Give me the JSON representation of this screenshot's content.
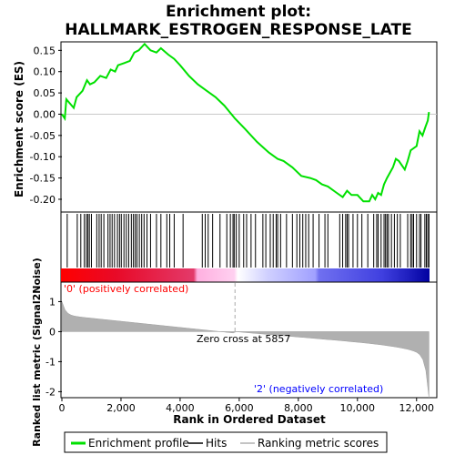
{
  "chart_data": {
    "type": "line",
    "title_line1": "Enrichment plot:",
    "title_line2": "HALLMARK_ESTROGEN_RESPONSE_LATE",
    "xlabel": "Rank in Ordered Dataset",
    "ylabel_top": "Enrichment score (ES)",
    "ylabel_bottom": "Ranked list metric (Signal2Noise)",
    "xlim": [
      0,
      12500
    ],
    "ylim_top": [
      -0.23,
      0.17
    ],
    "ylim_bottom": [
      -2.2,
      1.65
    ],
    "x_ticks": [
      0,
      2000,
      4000,
      6000,
      8000,
      10000,
      12000
    ],
    "x_tick_labels": [
      "0",
      "2,000",
      "4,000",
      "6,000",
      "8,000",
      "10,000",
      "12,000"
    ],
    "y_ticks_top": [
      0.15,
      0.1,
      0.05,
      0.0,
      -0.05,
      -0.1,
      -0.15,
      -0.2
    ],
    "y_tick_labels_top": [
      "0.15",
      "0.10",
      "0.05",
      "0.00",
      "-0.05",
      "-0.10",
      "-0.15",
      "-0.20"
    ],
    "y_ticks_bottom": [
      1,
      0,
      -1,
      -2
    ],
    "y_tick_labels_bottom": [
      "1",
      "0",
      "-1",
      "-2"
    ],
    "es_x": [
      0,
      100,
      150,
      400,
      500,
      700,
      850,
      950,
      1100,
      1300,
      1500,
      1650,
      1800,
      1900,
      2100,
      2300,
      2450,
      2600,
      2800,
      3000,
      3200,
      3350,
      3600,
      3800,
      4000,
      4300,
      4600,
      4900,
      5200,
      5500,
      5857,
      6200,
      6600,
      7000,
      7300,
      7500,
      7800,
      8100,
      8400,
      8600,
      8800,
      9000,
      9300,
      9500,
      9650,
      9800,
      10000,
      10200,
      10400,
      10500,
      10600,
      10700,
      10800,
      10900,
      11000,
      11200,
      11300,
      11400,
      11600,
      11700,
      11800,
      12000,
      12100,
      12200,
      12300,
      12380,
      12420
    ],
    "es_y": [
      0.0,
      -0.01,
      0.035,
      0.015,
      0.04,
      0.055,
      0.08,
      0.07,
      0.075,
      0.09,
      0.085,
      0.105,
      0.1,
      0.115,
      0.12,
      0.125,
      0.145,
      0.15,
      0.165,
      0.15,
      0.145,
      0.155,
      0.14,
      0.13,
      0.115,
      0.09,
      0.07,
      0.055,
      0.04,
      0.02,
      -0.01,
      -0.035,
      -0.065,
      -0.09,
      -0.105,
      -0.11,
      -0.125,
      -0.145,
      -0.15,
      -0.155,
      -0.165,
      -0.17,
      -0.185,
      -0.195,
      -0.18,
      -0.19,
      -0.19,
      -0.205,
      -0.205,
      -0.19,
      -0.2,
      -0.185,
      -0.19,
      -0.165,
      -0.15,
      -0.125,
      -0.105,
      -0.11,
      -0.13,
      -0.11,
      -0.085,
      -0.075,
      -0.04,
      -0.05,
      -0.03,
      -0.015,
      0.005
    ],
    "hits": [
      180,
      520,
      640,
      760,
      830,
      880,
      930,
      1000,
      1180,
      1260,
      1330,
      1420,
      1560,
      1630,
      1700,
      1780,
      1880,
      1950,
      2010,
      2100,
      2180,
      2260,
      2350,
      2420,
      2480,
      2540,
      2620,
      2700,
      2780,
      2880,
      3000,
      3200,
      3350,
      3550,
      3650,
      3800,
      4100,
      4750,
      4850,
      4950,
      5100,
      5350,
      5580,
      5700,
      5790,
      5830,
      5900,
      6000,
      6150,
      6250,
      6400,
      6550,
      6800,
      6900,
      7050,
      7150,
      7250,
      7300,
      7400,
      7600,
      7800,
      7950,
      8050,
      8150,
      8250,
      8350,
      8500,
      8700,
      8900,
      9000,
      9400,
      9500,
      9600,
      9650,
      9700,
      9850,
      10000,
      10150,
      10350,
      10550,
      10650,
      10700,
      10800,
      10900,
      10950,
      11000,
      11050,
      11150,
      11250,
      11350,
      11450,
      11700,
      11800,
      11850,
      11900,
      12000,
      12100,
      12150,
      12280,
      12330,
      12380,
      12420
    ],
    "zero_cross": 5857,
    "zero_cross_label": "Zero cross at 5857",
    "pos_label": "'0' (positively correlated)",
    "neg_label": "'2' (negatively correlated)",
    "legend": [
      "Enrichment profile",
      "Hits",
      "Ranking metric scores"
    ],
    "colors": {
      "es_line": "#00e000",
      "hits": "#000000",
      "metric": "#b0b0b0",
      "pos_label": "#ff0000",
      "neg_label": "#0000ff",
      "zero_line": "#aaaaaa",
      "heat_red": "#ff0000",
      "heat_white": "#ffffff",
      "heat_blue": "#0000ff"
    }
  }
}
